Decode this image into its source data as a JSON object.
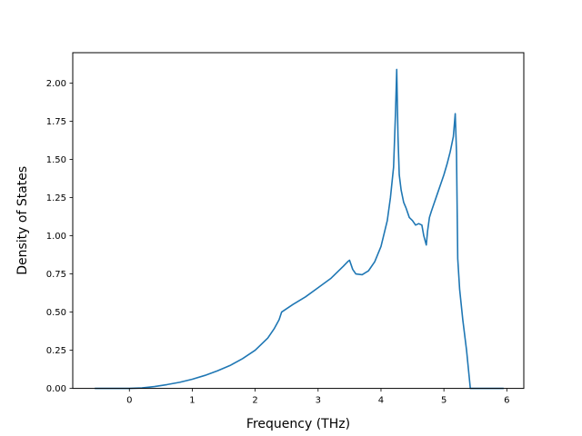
{
  "chart_data": {
    "type": "line",
    "title": "",
    "xlabel": "Frequency (THz)",
    "ylabel": "Density of States",
    "xlim": [
      -0.9,
      6.27
    ],
    "ylim": [
      0,
      2.2
    ],
    "grid": false,
    "legend": "none",
    "xticks": [
      "0",
      "1",
      "2",
      "3",
      "4",
      "5",
      "6"
    ],
    "yticks": [
      "0.00",
      "0.25",
      "0.50",
      "0.75",
      "1.00",
      "1.25",
      "1.50",
      "1.75",
      "2.00"
    ],
    "series": [
      {
        "color": "#1f77b4",
        "x": [
          -0.55,
          0.0,
          0.2,
          0.4,
          0.6,
          0.8,
          1.0,
          1.2,
          1.4,
          1.6,
          1.8,
          2.0,
          2.2,
          2.3,
          2.38,
          2.42,
          2.6,
          2.8,
          3.0,
          3.2,
          3.4,
          3.47,
          3.5,
          3.55,
          3.6,
          3.7,
          3.8,
          3.9,
          4.0,
          4.1,
          4.15,
          4.2,
          4.23,
          4.25,
          4.27,
          4.29,
          4.32,
          4.36,
          4.4,
          4.45,
          4.5,
          4.55,
          4.6,
          4.65,
          4.68,
          4.72,
          4.74,
          4.77,
          4.8,
          4.85,
          4.9,
          4.95,
          5.0,
          5.05,
          5.1,
          5.15,
          5.18,
          5.2,
          5.22,
          5.25,
          5.3,
          5.36,
          5.42,
          5.6,
          5.95
        ],
        "y": [
          0.0,
          0.0,
          0.003,
          0.012,
          0.025,
          0.04,
          0.06,
          0.085,
          0.115,
          0.15,
          0.195,
          0.25,
          0.33,
          0.39,
          0.45,
          0.5,
          0.55,
          0.6,
          0.66,
          0.72,
          0.8,
          0.83,
          0.84,
          0.78,
          0.75,
          0.745,
          0.77,
          0.83,
          0.93,
          1.1,
          1.25,
          1.45,
          1.8,
          2.09,
          1.65,
          1.4,
          1.3,
          1.22,
          1.18,
          1.12,
          1.1,
          1.07,
          1.08,
          1.07,
          1.0,
          0.94,
          1.03,
          1.12,
          1.16,
          1.22,
          1.28,
          1.34,
          1.4,
          1.47,
          1.55,
          1.65,
          1.8,
          1.55,
          0.85,
          0.65,
          0.45,
          0.25,
          0.0,
          0.0,
          0.0
        ]
      }
    ]
  }
}
